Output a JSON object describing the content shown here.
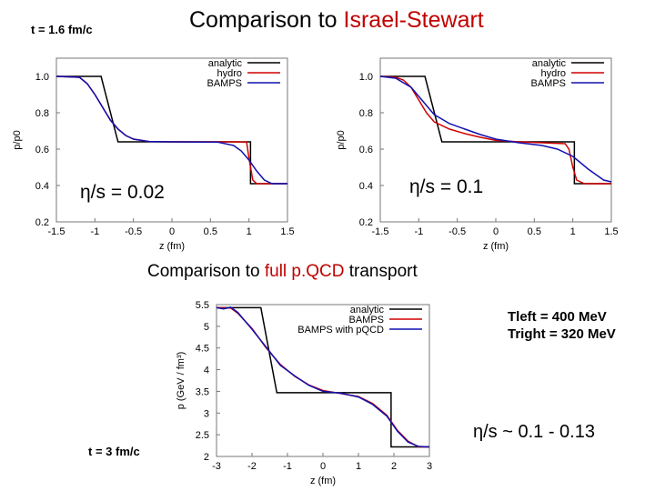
{
  "slide": {
    "title_prefix": "Comparison to ",
    "title_highlight": "Israel-Stewart",
    "time_top": "t = 1.6 fm/c",
    "subtitle_prefix": "Comparison to ",
    "subtitle_highlight": "full p.QCD",
    "subtitle_suffix": " transport",
    "t_left": "Tleft = 400 MeV",
    "t_right": "Tright = 320 MeV",
    "eta_range": "η/s ~ 0.1 - 0.13",
    "time_bottom": "t = 3 fm/c",
    "highlight_color": "#c00000"
  },
  "chart_data": [
    {
      "type": "line",
      "annotation": "η/s = 0.02",
      "xlabel": "z (fm)",
      "ylabel": "p/p0",
      "xlim": [
        -1.5,
        1.5
      ],
      "ylim": [
        0.2,
        1.1
      ],
      "xticks": [
        "-1.5",
        "-1",
        "-0.5",
        "0",
        "0.5",
        "1",
        "1.5"
      ],
      "yticks": [
        "0.2",
        "0.4",
        "0.6",
        "0.8",
        "1.0"
      ],
      "legend": "top-right",
      "series": [
        {
          "name": "analytic",
          "color": "#000000",
          "points": [
            [
              -1.5,
              1.0
            ],
            [
              -0.92,
              1.0
            ],
            [
              -0.7,
              0.64
            ],
            [
              1.02,
              0.64
            ],
            [
              1.02,
              0.41
            ],
            [
              1.5,
              0.41
            ]
          ]
        },
        {
          "name": "hydro",
          "color": "#d00000",
          "points": [
            [
              -1.5,
              1.0
            ],
            [
              -1.2,
              0.995
            ],
            [
              -1.1,
              0.96
            ],
            [
              -1.0,
              0.9
            ],
            [
              -0.9,
              0.83
            ],
            [
              -0.8,
              0.76
            ],
            [
              -0.7,
              0.71
            ],
            [
              -0.6,
              0.675
            ],
            [
              -0.5,
              0.655
            ],
            [
              -0.3,
              0.642
            ],
            [
              0,
              0.64
            ],
            [
              0.8,
              0.64
            ],
            [
              0.97,
              0.638
            ],
            [
              1.0,
              0.55
            ],
            [
              1.05,
              0.43
            ],
            [
              1.1,
              0.41
            ],
            [
              1.5,
              0.41
            ]
          ]
        },
        {
          "name": "BAMPS",
          "color": "#1010b0",
          "points": [
            [
              -1.5,
              1.0
            ],
            [
              -1.2,
              0.995
            ],
            [
              -1.1,
              0.96
            ],
            [
              -1.0,
              0.9
            ],
            [
              -0.9,
              0.83
            ],
            [
              -0.8,
              0.76
            ],
            [
              -0.7,
              0.71
            ],
            [
              -0.6,
              0.675
            ],
            [
              -0.5,
              0.655
            ],
            [
              -0.3,
              0.642
            ],
            [
              0,
              0.64
            ],
            [
              0.6,
              0.638
            ],
            [
              0.8,
              0.62
            ],
            [
              0.9,
              0.59
            ],
            [
              1.0,
              0.54
            ],
            [
              1.1,
              0.48
            ],
            [
              1.2,
              0.43
            ],
            [
              1.3,
              0.41
            ],
            [
              1.5,
              0.41
            ]
          ]
        }
      ]
    },
    {
      "type": "line",
      "annotation": "η/s = 0.1",
      "xlabel": "z (fm)",
      "ylabel": "p/p0",
      "xlim": [
        -1.5,
        1.5
      ],
      "ylim": [
        0.2,
        1.1
      ],
      "xticks": [
        "-1.5",
        "-1",
        "-0.5",
        "0",
        "0.5",
        "1",
        "1.5"
      ],
      "yticks": [
        "0.2",
        "0.4",
        "0.6",
        "0.8",
        "1.0"
      ],
      "legend": "top-right",
      "series": [
        {
          "name": "analytic",
          "color": "#000000",
          "points": [
            [
              -1.5,
              1.0
            ],
            [
              -0.92,
              1.0
            ],
            [
              -0.7,
              0.64
            ],
            [
              1.02,
              0.64
            ],
            [
              1.02,
              0.41
            ],
            [
              1.5,
              0.41
            ]
          ]
        },
        {
          "name": "hydro",
          "color": "#d00000",
          "points": [
            [
              -1.5,
              1.0
            ],
            [
              -1.3,
              0.995
            ],
            [
              -1.2,
              0.98
            ],
            [
              -1.1,
              0.94
            ],
            [
              -1.0,
              0.87
            ],
            [
              -0.9,
              0.8
            ],
            [
              -0.8,
              0.75
            ],
            [
              -0.6,
              0.71
            ],
            [
              -0.4,
              0.685
            ],
            [
              -0.2,
              0.665
            ],
            [
              0,
              0.648
            ],
            [
              0.3,
              0.64
            ],
            [
              0.6,
              0.635
            ],
            [
              0.9,
              0.63
            ],
            [
              0.95,
              0.6
            ],
            [
              1.0,
              0.5
            ],
            [
              1.05,
              0.43
            ],
            [
              1.15,
              0.41
            ],
            [
              1.5,
              0.41
            ]
          ]
        },
        {
          "name": "BAMPS",
          "color": "#1010b0",
          "points": [
            [
              -1.5,
              1.0
            ],
            [
              -1.3,
              0.99
            ],
            [
              -1.1,
              0.94
            ],
            [
              -1.0,
              0.89
            ],
            [
              -0.9,
              0.84
            ],
            [
              -0.8,
              0.79
            ],
            [
              -0.6,
              0.74
            ],
            [
              -0.4,
              0.71
            ],
            [
              -0.2,
              0.68
            ],
            [
              0,
              0.655
            ],
            [
              0.3,
              0.635
            ],
            [
              0.6,
              0.62
            ],
            [
              0.8,
              0.6
            ],
            [
              1.0,
              0.56
            ],
            [
              1.2,
              0.49
            ],
            [
              1.4,
              0.43
            ],
            [
              1.5,
              0.42
            ]
          ]
        }
      ]
    },
    {
      "type": "line",
      "xlabel": "z (fm)",
      "ylabel": "p (GeV / fm³)",
      "xlim": [
        -3,
        3
      ],
      "ylim": [
        2,
        5.5
      ],
      "xticks": [
        "-3",
        "-2",
        "-1",
        "0",
        "1",
        "2",
        "3"
      ],
      "yticks": [
        "2",
        "2.5",
        "3",
        "3.5",
        "4",
        "4.5",
        "5",
        "5.5"
      ],
      "legend": "top-right",
      "series": [
        {
          "name": "analytic",
          "color": "#000000",
          "points": [
            [
              -3,
              5.43
            ],
            [
              -1.75,
              5.43
            ],
            [
              -1.3,
              3.47
            ],
            [
              1.92,
              3.47
            ],
            [
              1.92,
              2.22
            ],
            [
              3,
              2.22
            ]
          ]
        },
        {
          "name": "BAMPS",
          "color": "#d00000",
          "points": [
            [
              -3,
              5.43
            ],
            [
              -2.6,
              5.42
            ],
            [
              -2.4,
              5.3
            ],
            [
              -2,
              4.95
            ],
            [
              -1.6,
              4.5
            ],
            [
              -1.2,
              4.12
            ],
            [
              -0.8,
              3.85
            ],
            [
              -0.4,
              3.65
            ],
            [
              0,
              3.52
            ],
            [
              0.5,
              3.45
            ],
            [
              1,
              3.38
            ],
            [
              1.4,
              3.22
            ],
            [
              1.8,
              2.95
            ],
            [
              2.1,
              2.6
            ],
            [
              2.4,
              2.35
            ],
            [
              2.7,
              2.22
            ],
            [
              3,
              2.22
            ]
          ]
        },
        {
          "name": "BAMPS with pQCD",
          "color": "#1010b0",
          "points": [
            [
              -3,
              5.43
            ],
            [
              -2.8,
              5.4
            ],
            [
              -2.6,
              5.44
            ],
            [
              -2.4,
              5.32
            ],
            [
              -2,
              4.93
            ],
            [
              -1.6,
              4.52
            ],
            [
              -1.2,
              4.1
            ],
            [
              -0.8,
              3.86
            ],
            [
              -0.4,
              3.64
            ],
            [
              0,
              3.5
            ],
            [
              0.5,
              3.46
            ],
            [
              1,
              3.37
            ],
            [
              1.4,
              3.2
            ],
            [
              1.8,
              2.93
            ],
            [
              2.1,
              2.58
            ],
            [
              2.4,
              2.33
            ],
            [
              2.7,
              2.23
            ],
            [
              3,
              2.22
            ]
          ]
        }
      ]
    }
  ]
}
